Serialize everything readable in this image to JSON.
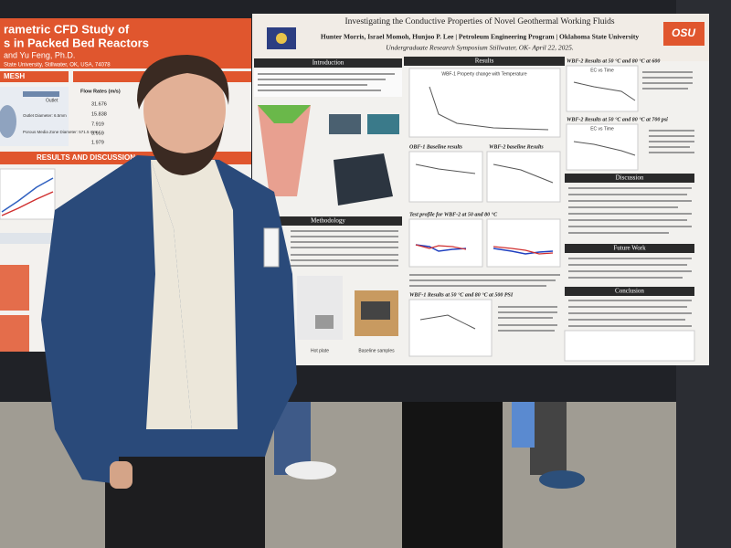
{
  "left_poster": {
    "title_lines": [
      "rametric CFD Study of",
      "s in Packed Bed Reactors",
      "and Yu Feng, Ph.D.",
      "State University, Stillwater, OK, USA, 74078"
    ],
    "sections": [
      "MESH",
      "RESULTS AND DISCUSSION"
    ],
    "table_header": "Flow Rates (m/s)",
    "flow_rates": [
      "31.676",
      "15.838",
      "7.919",
      "3.959",
      "1.979"
    ],
    "labels": [
      "Outlet",
      "Outlet Diameter: 6.5mm",
      "Porous Media Zone Diameter: 571.5 mm"
    ]
  },
  "right_poster": {
    "title": "Investigating the Conductive Properties of Novel Geothermal Working Fluids",
    "authors": "Hunter Morris, Israel Momoh, Hunjoo P. Lee | Petroleum Engineering Program | Oklahoma State University",
    "event": "Undergraduate Research Symposium Stillwater, OK- April 22, 2025.",
    "logo": "OSU",
    "sections": {
      "introduction": "Introduction",
      "methodology": "Methodology",
      "results": "Results",
      "discussion": "Discussion",
      "future_work": "Future Work",
      "conclusion": "Conclusion"
    },
    "subheads": [
      "WBF-2 Results at 50 °C and 80 °C at 600",
      "WBF-2 Results at 50 °C and 80 °C at 700 psi",
      "OBF-1 Baseline results",
      "WBF-2 baseline Results",
      "Test profile for WBF-2 at 50 and 80 °C",
      "WBF-1 Results at 50 °C and 80 °C at 500 PSI"
    ],
    "chart_titles": [
      "WBF-1 Property change with Temperature",
      "EC vs Time",
      "EC vs Time"
    ],
    "image_captions": [
      "Baseline samples",
      "Hot plate"
    ]
  }
}
